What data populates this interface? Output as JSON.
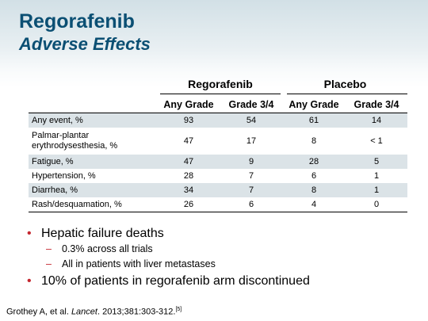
{
  "title": {
    "line1": "Regorafenib",
    "line2": "Adverse Effects"
  },
  "table": {
    "groups": [
      "Regorafenib",
      "Placebo"
    ],
    "columns": [
      "Any Grade",
      "Grade 3/4",
      "Any Grade",
      "Grade 3/4"
    ],
    "rows": [
      {
        "label": "Any event, %",
        "values": [
          "93",
          "54",
          "61",
          "14"
        ]
      },
      {
        "label_line1": "Palmar-plantar",
        "label_line2": "erythrodysesthesia, %",
        "values": [
          "47",
          "17",
          "8",
          "< 1"
        ]
      },
      {
        "label": "Fatigue, %",
        "values": [
          "47",
          "9",
          "28",
          "5"
        ]
      },
      {
        "label": "Hypertension, %",
        "values": [
          "28",
          "7",
          "6",
          "1"
        ]
      },
      {
        "label": "Diarrhea, %",
        "values": [
          "34",
          "7",
          "8",
          "1"
        ]
      },
      {
        "label": "Rash/desquamation, %",
        "values": [
          "26",
          "6",
          "4",
          "0"
        ]
      }
    ]
  },
  "bullets": {
    "b1": "Hepatic failure deaths",
    "b1_sub1": "0.3% across all trials",
    "b1_sub2": "All in patients with liver metastases",
    "b2": "10% of patients in regorafenib arm discontinued"
  },
  "citation": {
    "authors": "Grothey A, et al. ",
    "journal": "Lancet",
    "details": ". 2013;381:303-312.",
    "ref": "[5]"
  }
}
